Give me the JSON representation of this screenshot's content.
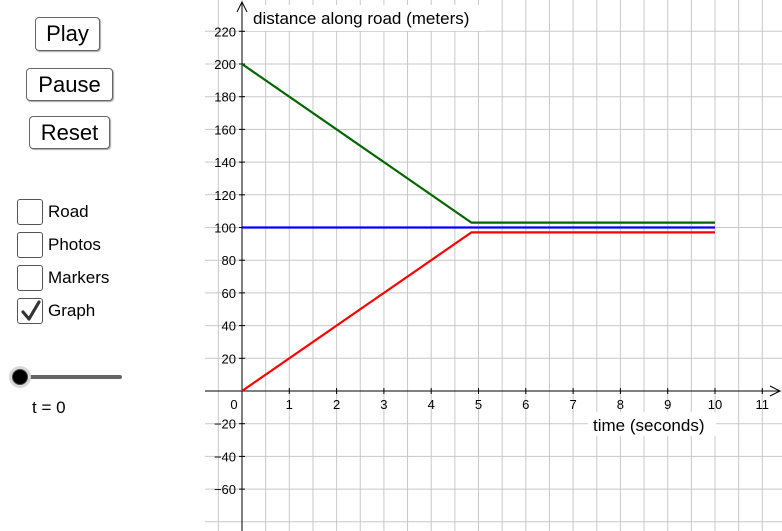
{
  "controls": {
    "play_label": "Play",
    "pause_label": "Pause",
    "reset_label": "Reset"
  },
  "checkboxes": [
    {
      "label": "Road",
      "checked": false
    },
    {
      "label": "Photos",
      "checked": false
    },
    {
      "label": "Markers",
      "checked": false
    },
    {
      "label": "Graph",
      "checked": true
    }
  ],
  "slider": {
    "label": "t = 0",
    "value": 0
  },
  "colors": {
    "green": "#006600",
    "blue": "#0000ff",
    "red": "#ff0000",
    "grid": "#c8c8c8",
    "axis": "#000000"
  },
  "chart_data": {
    "type": "line",
    "ylabel": "distance along road (meters)",
    "xlabel": "time (seconds)",
    "xlim": [
      0,
      11
    ],
    "ylim": [
      -60,
      220
    ],
    "x_ticks": [
      0,
      1,
      2,
      3,
      4,
      5,
      6,
      7,
      8,
      9,
      10,
      11
    ],
    "y_ticks": [
      -60,
      -40,
      -20,
      20,
      40,
      60,
      80,
      100,
      120,
      140,
      160,
      180,
      200,
      220
    ],
    "grid": true,
    "series": [
      {
        "color": "#006600",
        "points": [
          [
            0,
            200
          ],
          [
            4.85,
            103
          ],
          [
            10,
            103
          ]
        ]
      },
      {
        "color": "#0000ff",
        "points": [
          [
            0,
            100
          ],
          [
            10,
            100
          ]
        ]
      },
      {
        "color": "#ff0000",
        "points": [
          [
            0,
            0
          ],
          [
            4.85,
            97
          ],
          [
            10,
            97
          ]
        ]
      }
    ]
  }
}
